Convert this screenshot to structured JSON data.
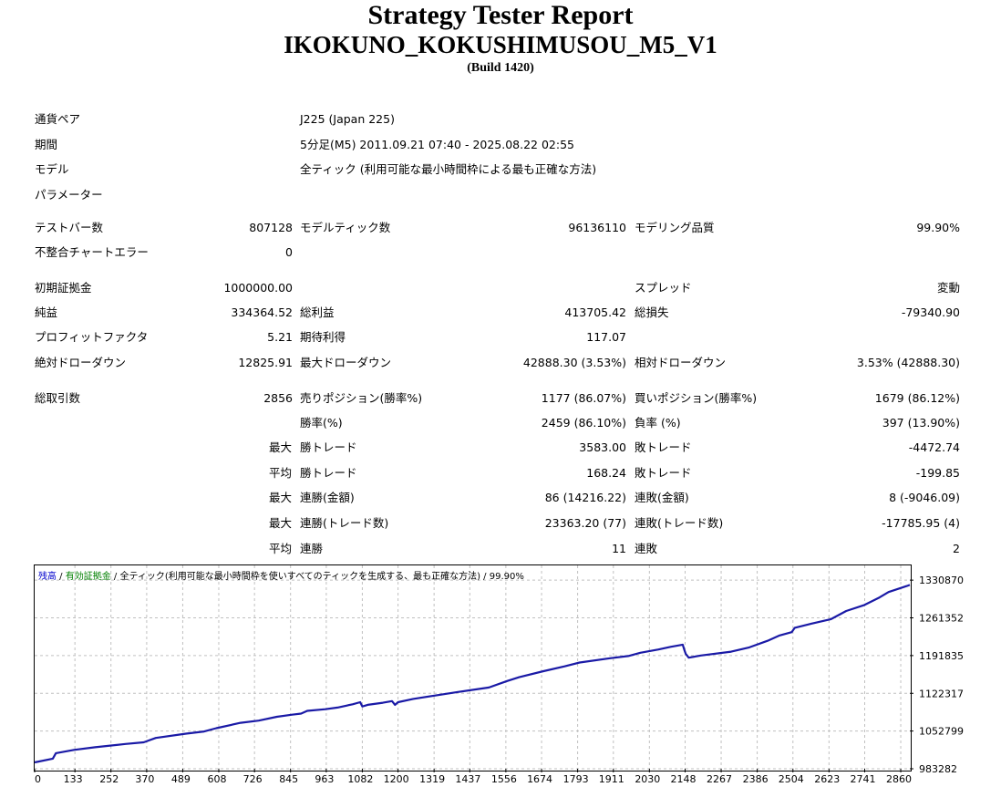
{
  "header": {
    "title": "Strategy Tester Report",
    "ea_name": "IKOKUNO_KOKUSHIMUSOU_M5_V1",
    "build": "(Build 1420)"
  },
  "settings": {
    "symbol_label": "通貨ペア",
    "symbol_value": "J225 (Japan 225)",
    "period_label": "期間",
    "period_value": "5分足(M5) 2011.09.21 07:40 - 2025.08.22 02:55",
    "model_label": "モデル",
    "model_value": "全ティック (利用可能な最小時間枠による最も正確な方法)",
    "params_label": "パラメーター"
  },
  "stats": {
    "bars_label": "テストバー数",
    "bars_value": "807128",
    "ticks_label": "モデルティック数",
    "ticks_value": "96136110",
    "quality_label": "モデリング品質",
    "quality_value": "99.90%",
    "mismatch_label": "不整合チャートエラー",
    "mismatch_value": "0",
    "deposit_label": "初期証拠金",
    "deposit_value": "1000000.00",
    "spread_label": "スプレッド",
    "spread_value": "変動",
    "net_label": "純益",
    "net_value": "334364.52",
    "gross_profit_label": "総利益",
    "gross_profit_value": "413705.42",
    "gross_loss_label": "総損失",
    "gross_loss_value": "-79340.90",
    "pf_label": "プロフィットファクタ",
    "pf_value": "5.21",
    "payoff_label": "期待利得",
    "payoff_value": "117.07",
    "abs_dd_label": "絶対ドローダウン",
    "abs_dd_value": "12825.91",
    "max_dd_label": "最大ドローダウン",
    "max_dd_value": "42888.30 (3.53%)",
    "rel_dd_label": "相対ドローダウン",
    "rel_dd_value": "3.53% (42888.30)",
    "trades_label": "総取引数",
    "trades_value": "2856",
    "short_label": "売りポジション(勝率%)",
    "short_value": "1177 (86.07%)",
    "long_label": "買いポジション(勝率%)",
    "long_value": "1679 (86.12%)",
    "win_rate_label": "勝率(%)",
    "win_rate_value": "2459 (86.10%)",
    "loss_rate_label": "負率 (%)",
    "loss_rate_value": "397 (13.90%)",
    "max_label_1": "最大",
    "largest_win_label": "勝トレード",
    "largest_win_value": "3583.00",
    "largest_loss_label": "敗トレード",
    "largest_loss_value": "-4472.74",
    "avg_label_1": "平均",
    "avg_win_label": "勝トレード",
    "avg_win_value": "168.24",
    "avg_loss_label": "敗トレード",
    "avg_loss_value": "-199.85",
    "max_label_2": "最大",
    "max_consec_wins_label": "連勝(金額)",
    "max_consec_wins_value": "86 (14216.22)",
    "max_consec_losses_label": "連敗(金額)",
    "max_consec_losses_value": "8 (-9046.09)",
    "max_label_3": "最大",
    "max_consec_profit_label": "連勝(トレード数)",
    "max_consec_profit_value": "23363.20 (77)",
    "max_consec_loss_label": "連敗(トレード数)",
    "max_consec_loss_value": "-17785.95 (4)",
    "avg_label_2": "平均",
    "avg_consec_wins_label": "連勝",
    "avg_consec_wins_value": "11",
    "avg_consec_losses_label": "連敗",
    "avg_consec_losses_value": "2"
  },
  "chart_legend": {
    "balance": "残高",
    "sep1": " / ",
    "equity": "有効証拠金",
    "sep2": " / ",
    "model": "全ティック(利用可能な最小時間枠を使いすべてのティックを生成する、最も正確な方法)",
    "sep3": " / ",
    "quality": "99.90%"
  },
  "colors": {
    "balance": "#0000cc",
    "equity": "#008000",
    "grid": "#c0c0c0",
    "line": "#1a1aa6"
  },
  "chart_data": {
    "type": "line",
    "title": "",
    "xlabel": "",
    "ylabel": "",
    "x_ticks": [
      0,
      133,
      252,
      370,
      489,
      608,
      726,
      845,
      963,
      1082,
      1200,
      1319,
      1437,
      1556,
      1674,
      1793,
      1911,
      2030,
      2148,
      2267,
      2386,
      2504,
      2623,
      2741,
      2860
    ],
    "y_ticks": [
      983282,
      1052799,
      1122317,
      1191835,
      1261352,
      1330870
    ],
    "xlim": [
      0,
      2890
    ],
    "ylim": [
      983282,
      1358000
    ],
    "grid": true,
    "series": [
      {
        "values_desc": "",
        "x": [
          0,
          60,
          70,
          130,
          200,
          300,
          360,
          400,
          500,
          560,
          600,
          680,
          740,
          800,
          850,
          880,
          900,
          960,
          1000,
          1050,
          1075,
          1082,
          1100,
          1150,
          1180,
          1190,
          1200,
          1250,
          1320,
          1400,
          1500,
          1560,
          1600,
          1680,
          1750,
          1800,
          1900,
          1960,
          2000,
          2060,
          2100,
          2140,
          2145,
          2150,
          2160,
          2200,
          2300,
          2360,
          2420,
          2460,
          2500,
          2510,
          2560,
          2630,
          2680,
          2740,
          2790,
          2820,
          2880,
          2890
        ],
        "y": [
          995000,
          1002000,
          1012000,
          1018000,
          1023000,
          1029000,
          1032000,
          1040000,
          1048000,
          1052000,
          1058000,
          1068000,
          1072000,
          1079000,
          1083000,
          1085000,
          1090000,
          1093000,
          1096000,
          1102000,
          1106000,
          1098000,
          1101000,
          1105000,
          1108000,
          1101000,
          1106000,
          1112000,
          1118000,
          1125000,
          1133000,
          1145000,
          1152000,
          1163000,
          1172000,
          1179000,
          1187000,
          1191000,
          1197000,
          1203000,
          1208000,
          1212000,
          1203000,
          1195000,
          1188000,
          1192000,
          1199000,
          1207000,
          1219000,
          1229000,
          1235000,
          1243000,
          1250000,
          1259000,
          1274000,
          1285000,
          1299000,
          1309000,
          1320000,
          1322000
        ]
      }
    ]
  }
}
